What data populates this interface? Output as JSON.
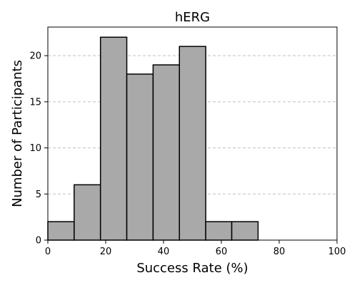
{
  "chart_data": {
    "type": "bar",
    "title": "hERG",
    "xlabel": "Success Rate (%)",
    "ylabel": "Number of Participants",
    "xlim": [
      0,
      100
    ],
    "ylim": [
      0,
      23.1
    ],
    "bin_width": 9.1,
    "bins": [
      {
        "start": 0.0,
        "end": 9.1,
        "count": 2
      },
      {
        "start": 9.1,
        "end": 18.2,
        "count": 6
      },
      {
        "start": 18.2,
        "end": 27.3,
        "count": 22
      },
      {
        "start": 27.3,
        "end": 36.4,
        "count": 18
      },
      {
        "start": 36.4,
        "end": 45.5,
        "count": 19
      },
      {
        "start": 45.5,
        "end": 54.6,
        "count": 21
      },
      {
        "start": 54.6,
        "end": 63.6,
        "count": 2
      },
      {
        "start": 63.6,
        "end": 72.7,
        "count": 2
      }
    ],
    "xticks": [
      0,
      20,
      40,
      60,
      80,
      100
    ],
    "yticks": [
      0,
      5,
      10,
      15,
      20
    ],
    "xtick_labels": [
      "0",
      "20",
      "40",
      "60",
      "80",
      "100"
    ],
    "ytick_labels": [
      "0",
      "5",
      "10",
      "15",
      "20"
    ],
    "grid": "y-dashed",
    "bar_color": "#a9a9a9",
    "edge_color": "#000000"
  }
}
